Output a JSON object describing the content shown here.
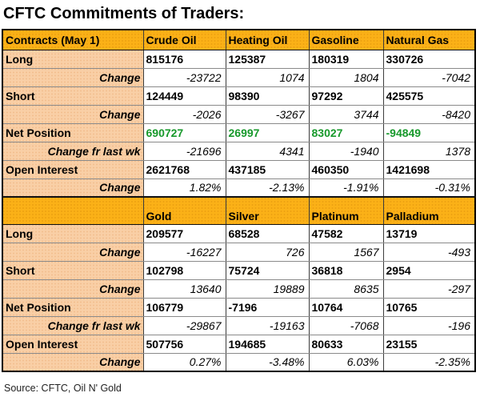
{
  "title": "CFTC Commitments of Traders:",
  "source": "Source: CFTC, Oil N' Gold",
  "colors": {
    "header_bg": "#FBB117",
    "label_bg": "#F9CFA6",
    "net_position_green": "#17992B",
    "text": "#000000"
  },
  "table": {
    "sections": [
      {
        "header": [
          "Contracts (May 1)",
          "Crude Oil",
          "Heating Oil",
          "Gasoline",
          "Natural Gas"
        ],
        "rows": [
          {
            "label": "Long",
            "type": "value",
            "values": [
              "815176",
              "125387",
              "180319",
              "330726"
            ]
          },
          {
            "label": "Change",
            "type": "change",
            "values": [
              "-23722",
              "1074",
              "1804",
              "-7042"
            ]
          },
          {
            "label": "Short",
            "type": "value",
            "values": [
              "124449",
              "98390",
              "97292",
              "425575"
            ]
          },
          {
            "label": "Change",
            "type": "change",
            "values": [
              "-2026",
              "-3267",
              "3744",
              "-8420"
            ]
          },
          {
            "label": "Net Position",
            "type": "net",
            "values": [
              "690727",
              "26997",
              "83027",
              "-94849"
            ]
          },
          {
            "label": "Change fr last wk",
            "type": "change",
            "values": [
              "-21696",
              "4341",
              "-1940",
              "1378"
            ]
          },
          {
            "label": "Open Interest",
            "type": "value",
            "values": [
              "2621768",
              "437185",
              "460350",
              "1421698"
            ]
          },
          {
            "label": "Change",
            "type": "change",
            "values": [
              "1.82%",
              "-2.13%",
              "-1.91%",
              "-0.31%"
            ]
          }
        ]
      },
      {
        "header": [
          "",
          "Gold",
          "Silver",
          "Platinum",
          "Palladium"
        ],
        "rows": [
          {
            "label": "Long",
            "type": "value",
            "values": [
              "209577",
              "68528",
              "47582",
              "13719"
            ]
          },
          {
            "label": "Change",
            "type": "change",
            "values": [
              "-16227",
              "726",
              "1567",
              "-493"
            ]
          },
          {
            "label": "Short",
            "type": "value",
            "values": [
              "102798",
              "75724",
              "36818",
              "2954"
            ]
          },
          {
            "label": "Change",
            "type": "change",
            "values": [
              "13640",
              "19889",
              "8635",
              "-297"
            ]
          },
          {
            "label": "Net Position",
            "type": "value",
            "values": [
              "106779",
              "-7196",
              "10764",
              "10765"
            ]
          },
          {
            "label": "Change fr last wk",
            "type": "change",
            "values": [
              "-29867",
              "-19163",
              "-7068",
              "-196"
            ]
          },
          {
            "label": "Open Interest",
            "type": "value",
            "values": [
              "507756",
              "194685",
              "80633",
              "23155"
            ]
          },
          {
            "label": "Change",
            "type": "change",
            "values": [
              "0.27%",
              "-3.48%",
              "6.03%",
              "-2.35%"
            ]
          }
        ]
      }
    ]
  }
}
